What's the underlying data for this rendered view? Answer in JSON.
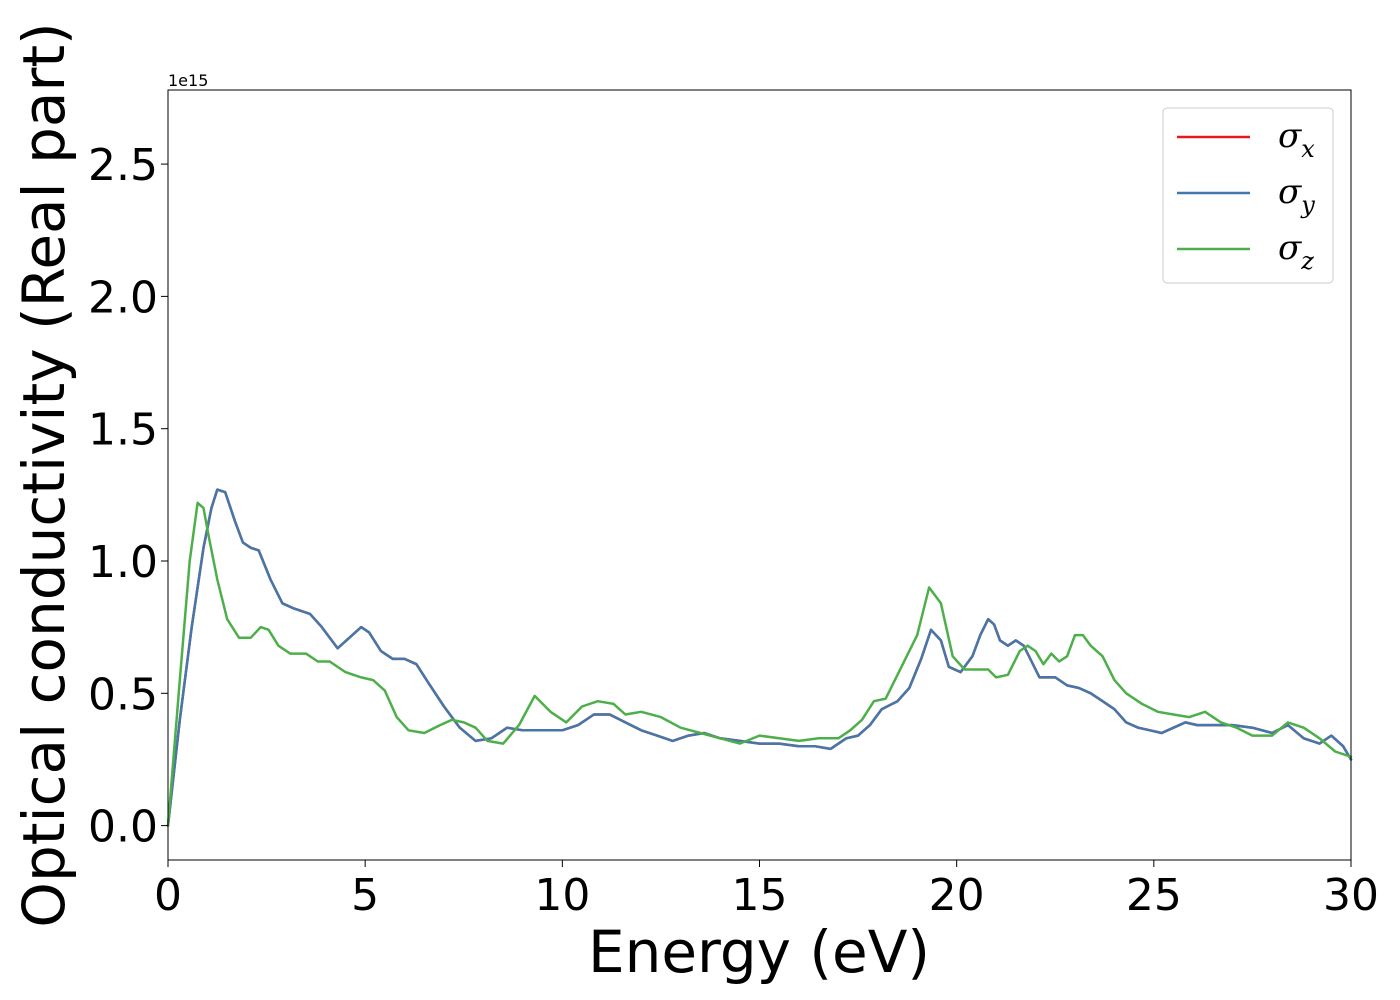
{
  "chart_data": {
    "type": "line",
    "xlabel": "Energy (eV)",
    "ylabel": "Optical conductivity (Real part)",
    "y_offset_text": "1e15",
    "y_scale": 1000000000000000.0,
    "xlim": [
      0,
      30
    ],
    "ylim": [
      -0.13,
      2.78
    ],
    "xticks": [
      0,
      5,
      10,
      15,
      20,
      25,
      30
    ],
    "xtick_labels": [
      "0",
      "5",
      "10",
      "15",
      "20",
      "25",
      "30"
    ],
    "yticks": [
      0.0,
      0.5,
      1.0,
      1.5,
      2.0,
      2.5
    ],
    "ytick_labels": [
      "0.0",
      "0.5",
      "1.0",
      "1.5",
      "2.0",
      "2.5"
    ],
    "grid": false,
    "legend_position": "top-right",
    "series": [
      {
        "name": "σx",
        "symbol": "σ",
        "subscript": "x",
        "color": "#e41a1c",
        "x": [
          0,
          0.3,
          0.6,
          0.9,
          1.1,
          1.25,
          1.45,
          1.7,
          1.9,
          2.1,
          2.3,
          2.6,
          2.9,
          3.2,
          3.6,
          3.9,
          4.3,
          4.6,
          4.9,
          5.1,
          5.4,
          5.7,
          6.0,
          6.3,
          6.6,
          7.0,
          7.4,
          7.8,
          8.2,
          8.6,
          9.0,
          9.5,
          10.0,
          10.4,
          10.8,
          11.2,
          11.6,
          12.0,
          12.4,
          12.8,
          13.2,
          13.6,
          14.0,
          14.5,
          15.0,
          15.5,
          16.0,
          16.4,
          16.8,
          17.2,
          17.5,
          17.8,
          18.1,
          18.5,
          18.8,
          19.1,
          19.35,
          19.6,
          19.8,
          20.1,
          20.4,
          20.6,
          20.8,
          20.95,
          21.1,
          21.3,
          21.5,
          21.7,
          21.9,
          22.1,
          22.3,
          22.5,
          22.8,
          23.1,
          23.4,
          23.7,
          24.0,
          24.3,
          24.6,
          24.9,
          25.2,
          25.5,
          25.8,
          26.1,
          26.5,
          27.0,
          27.5,
          28.0,
          28.4,
          28.8,
          29.2,
          29.5,
          29.8,
          30.0
        ],
        "y": [
          0.0,
          0.4,
          0.75,
          1.05,
          1.2,
          1.27,
          1.26,
          1.15,
          1.07,
          1.05,
          1.04,
          0.93,
          0.84,
          0.82,
          0.8,
          0.75,
          0.67,
          0.71,
          0.75,
          0.73,
          0.66,
          0.63,
          0.63,
          0.61,
          0.54,
          0.45,
          0.37,
          0.32,
          0.33,
          0.37,
          0.36,
          0.36,
          0.36,
          0.38,
          0.42,
          0.42,
          0.39,
          0.36,
          0.34,
          0.32,
          0.34,
          0.35,
          0.33,
          0.32,
          0.31,
          0.31,
          0.3,
          0.3,
          0.29,
          0.33,
          0.34,
          0.38,
          0.44,
          0.47,
          0.52,
          0.63,
          0.74,
          0.7,
          0.6,
          0.58,
          0.64,
          0.72,
          0.78,
          0.76,
          0.7,
          0.68,
          0.7,
          0.68,
          0.62,
          0.56,
          0.56,
          0.56,
          0.53,
          0.52,
          0.5,
          0.47,
          0.44,
          0.39,
          0.37,
          0.36,
          0.35,
          0.37,
          0.39,
          0.38,
          0.38,
          0.38,
          0.37,
          0.35,
          0.38,
          0.33,
          0.31,
          0.34,
          0.3,
          0.25
        ]
      },
      {
        "name": "σy",
        "symbol": "σ",
        "subscript": "y",
        "color": "#4477aa",
        "x": [
          0,
          0.3,
          0.6,
          0.9,
          1.1,
          1.25,
          1.45,
          1.7,
          1.9,
          2.1,
          2.3,
          2.6,
          2.9,
          3.2,
          3.6,
          3.9,
          4.3,
          4.6,
          4.9,
          5.1,
          5.4,
          5.7,
          6.0,
          6.3,
          6.6,
          7.0,
          7.4,
          7.8,
          8.2,
          8.6,
          9.0,
          9.5,
          10.0,
          10.4,
          10.8,
          11.2,
          11.6,
          12.0,
          12.4,
          12.8,
          13.2,
          13.6,
          14.0,
          14.5,
          15.0,
          15.5,
          16.0,
          16.4,
          16.8,
          17.2,
          17.5,
          17.8,
          18.1,
          18.5,
          18.8,
          19.1,
          19.35,
          19.6,
          19.8,
          20.1,
          20.4,
          20.6,
          20.8,
          20.95,
          21.1,
          21.3,
          21.5,
          21.7,
          21.9,
          22.1,
          22.3,
          22.5,
          22.8,
          23.1,
          23.4,
          23.7,
          24.0,
          24.3,
          24.6,
          24.9,
          25.2,
          25.5,
          25.8,
          26.1,
          26.5,
          27.0,
          27.5,
          28.0,
          28.4,
          28.8,
          29.2,
          29.5,
          29.8,
          30.0
        ],
        "y": [
          0.0,
          0.4,
          0.75,
          1.05,
          1.2,
          1.27,
          1.26,
          1.15,
          1.07,
          1.05,
          1.04,
          0.93,
          0.84,
          0.82,
          0.8,
          0.75,
          0.67,
          0.71,
          0.75,
          0.73,
          0.66,
          0.63,
          0.63,
          0.61,
          0.54,
          0.45,
          0.37,
          0.32,
          0.33,
          0.37,
          0.36,
          0.36,
          0.36,
          0.38,
          0.42,
          0.42,
          0.39,
          0.36,
          0.34,
          0.32,
          0.34,
          0.35,
          0.33,
          0.32,
          0.31,
          0.31,
          0.3,
          0.3,
          0.29,
          0.33,
          0.34,
          0.38,
          0.44,
          0.47,
          0.52,
          0.63,
          0.74,
          0.7,
          0.6,
          0.58,
          0.64,
          0.72,
          0.78,
          0.76,
          0.7,
          0.68,
          0.7,
          0.68,
          0.62,
          0.56,
          0.56,
          0.56,
          0.53,
          0.52,
          0.5,
          0.47,
          0.44,
          0.39,
          0.37,
          0.36,
          0.35,
          0.37,
          0.39,
          0.38,
          0.38,
          0.38,
          0.37,
          0.35,
          0.38,
          0.33,
          0.31,
          0.34,
          0.3,
          0.25
        ]
      },
      {
        "name": "σz",
        "symbol": "σ",
        "subscript": "z",
        "color": "#4daf4a",
        "x": [
          0,
          0.3,
          0.55,
          0.75,
          0.9,
          1.05,
          1.25,
          1.5,
          1.8,
          2.1,
          2.35,
          2.55,
          2.8,
          3.1,
          3.5,
          3.8,
          4.1,
          4.5,
          4.9,
          5.2,
          5.5,
          5.8,
          6.1,
          6.5,
          6.9,
          7.2,
          7.5,
          7.8,
          8.1,
          8.5,
          8.9,
          9.3,
          9.7,
          10.1,
          10.5,
          10.9,
          11.3,
          11.6,
          12.0,
          12.5,
          13.0,
          13.5,
          14.0,
          14.5,
          15.0,
          15.5,
          16.0,
          16.5,
          17.0,
          17.3,
          17.6,
          17.9,
          18.2,
          18.6,
          19.0,
          19.3,
          19.6,
          19.9,
          20.2,
          20.5,
          20.8,
          21.0,
          21.3,
          21.6,
          21.8,
          22.0,
          22.2,
          22.4,
          22.6,
          22.8,
          23.0,
          23.2,
          23.4,
          23.7,
          24.0,
          24.3,
          24.7,
          25.1,
          25.5,
          25.9,
          26.3,
          26.7,
          27.1,
          27.5,
          28.0,
          28.4,
          28.8,
          29.2,
          29.6,
          30.0
        ],
        "y": [
          0.0,
          0.55,
          1.0,
          1.22,
          1.2,
          1.08,
          0.93,
          0.78,
          0.71,
          0.71,
          0.75,
          0.74,
          0.68,
          0.65,
          0.65,
          0.62,
          0.62,
          0.58,
          0.56,
          0.55,
          0.51,
          0.41,
          0.36,
          0.35,
          0.38,
          0.4,
          0.39,
          0.37,
          0.32,
          0.31,
          0.38,
          0.49,
          0.43,
          0.39,
          0.45,
          0.47,
          0.46,
          0.42,
          0.43,
          0.41,
          0.37,
          0.35,
          0.33,
          0.31,
          0.34,
          0.33,
          0.32,
          0.33,
          0.33,
          0.36,
          0.4,
          0.47,
          0.48,
          0.6,
          0.72,
          0.9,
          0.84,
          0.64,
          0.59,
          0.59,
          0.59,
          0.56,
          0.57,
          0.66,
          0.68,
          0.66,
          0.61,
          0.65,
          0.62,
          0.64,
          0.72,
          0.72,
          0.68,
          0.64,
          0.55,
          0.5,
          0.46,
          0.43,
          0.42,
          0.41,
          0.43,
          0.39,
          0.37,
          0.34,
          0.34,
          0.39,
          0.37,
          0.33,
          0.28,
          0.26
        ]
      }
    ]
  }
}
